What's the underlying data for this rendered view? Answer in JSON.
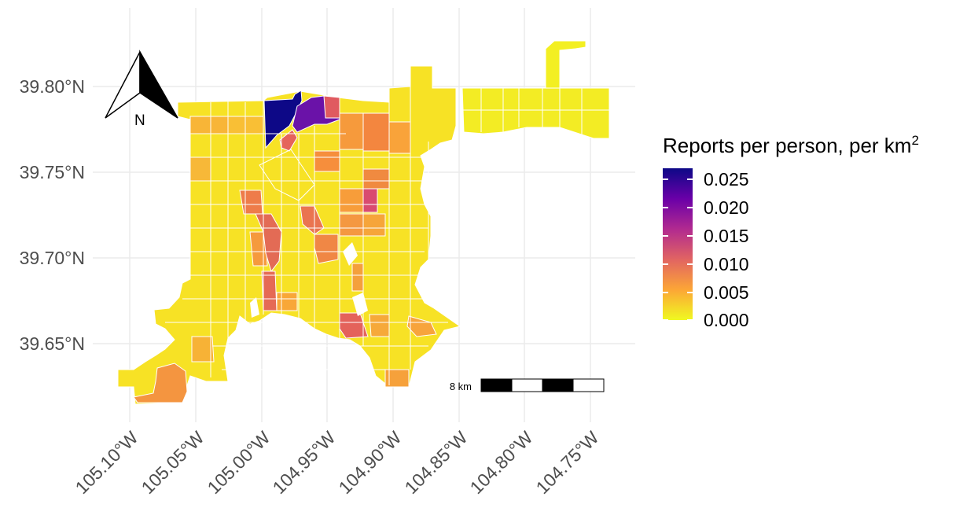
{
  "map": {
    "latitude_labels": [
      "39.80°N",
      "39.75°N",
      "39.70°N",
      "39.65°N"
    ],
    "longitude_labels": [
      "105.10°W",
      "105.05°W",
      "105.00°W",
      "104.95°W",
      "104.90°W",
      "104.85°W",
      "104.80°W",
      "104.75°W"
    ],
    "north_arrow_label": "N",
    "scale_bar_label": "8 km"
  },
  "legend": {
    "title_main": "Reports per person, per km",
    "title_superscript": "2",
    "ticks": [
      "0.025",
      "0.020",
      "0.015",
      "0.010",
      "0.005",
      "0.000"
    ],
    "colors": [
      "#0d0887",
      "#6a00a8",
      "#b12a90",
      "#e16462",
      "#fca636",
      "#f0f921"
    ]
  },
  "colors": {
    "gridline": "#ebebeb",
    "text": "#4d4d4d",
    "background": "#ffffff"
  }
}
